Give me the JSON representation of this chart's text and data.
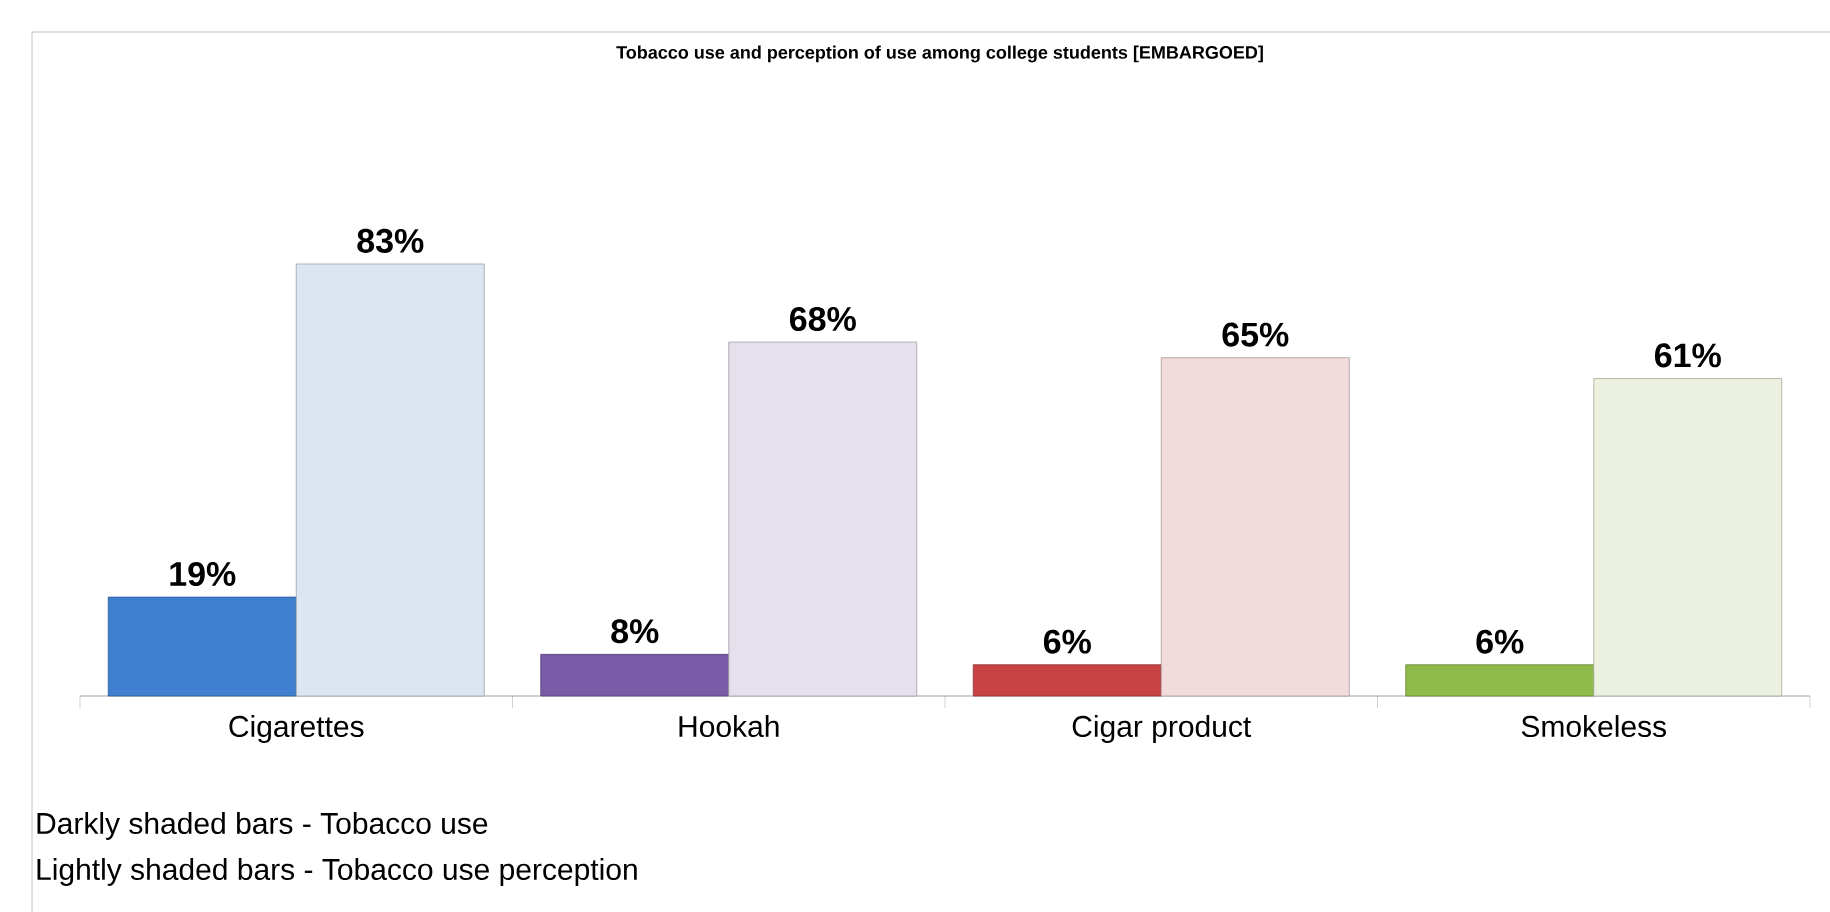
{
  "chart_data": {
    "type": "bar",
    "title": "Tobacco use and perception of use among college students [EMBARGOED]",
    "categories": [
      "Cigarettes",
      "Hookah",
      "Cigar product",
      "Smokeless"
    ],
    "series": [
      {
        "colors": [
          "#3f7fd0",
          "#7a5aa6",
          "#c84444",
          "#8fbb4a"
        ],
        "values": [
          19,
          8,
          6,
          6
        ],
        "value_labels": [
          "19%",
          "8%",
          "6%",
          "6%"
        ]
      },
      {
        "colors": [
          "#dce6f2",
          "#e6e0ec",
          "#f2dcdb",
          "#ebf1de"
        ],
        "values": [
          83,
          68,
          65,
          61
        ],
        "value_labels": [
          "83%",
          "68%",
          "65%",
          "61%"
        ]
      }
    ],
    "annotations": [
      "Darkly shaded bars - Tobacco use",
      "Lightly shaded bars - Tobacco use perception"
    ]
  }
}
